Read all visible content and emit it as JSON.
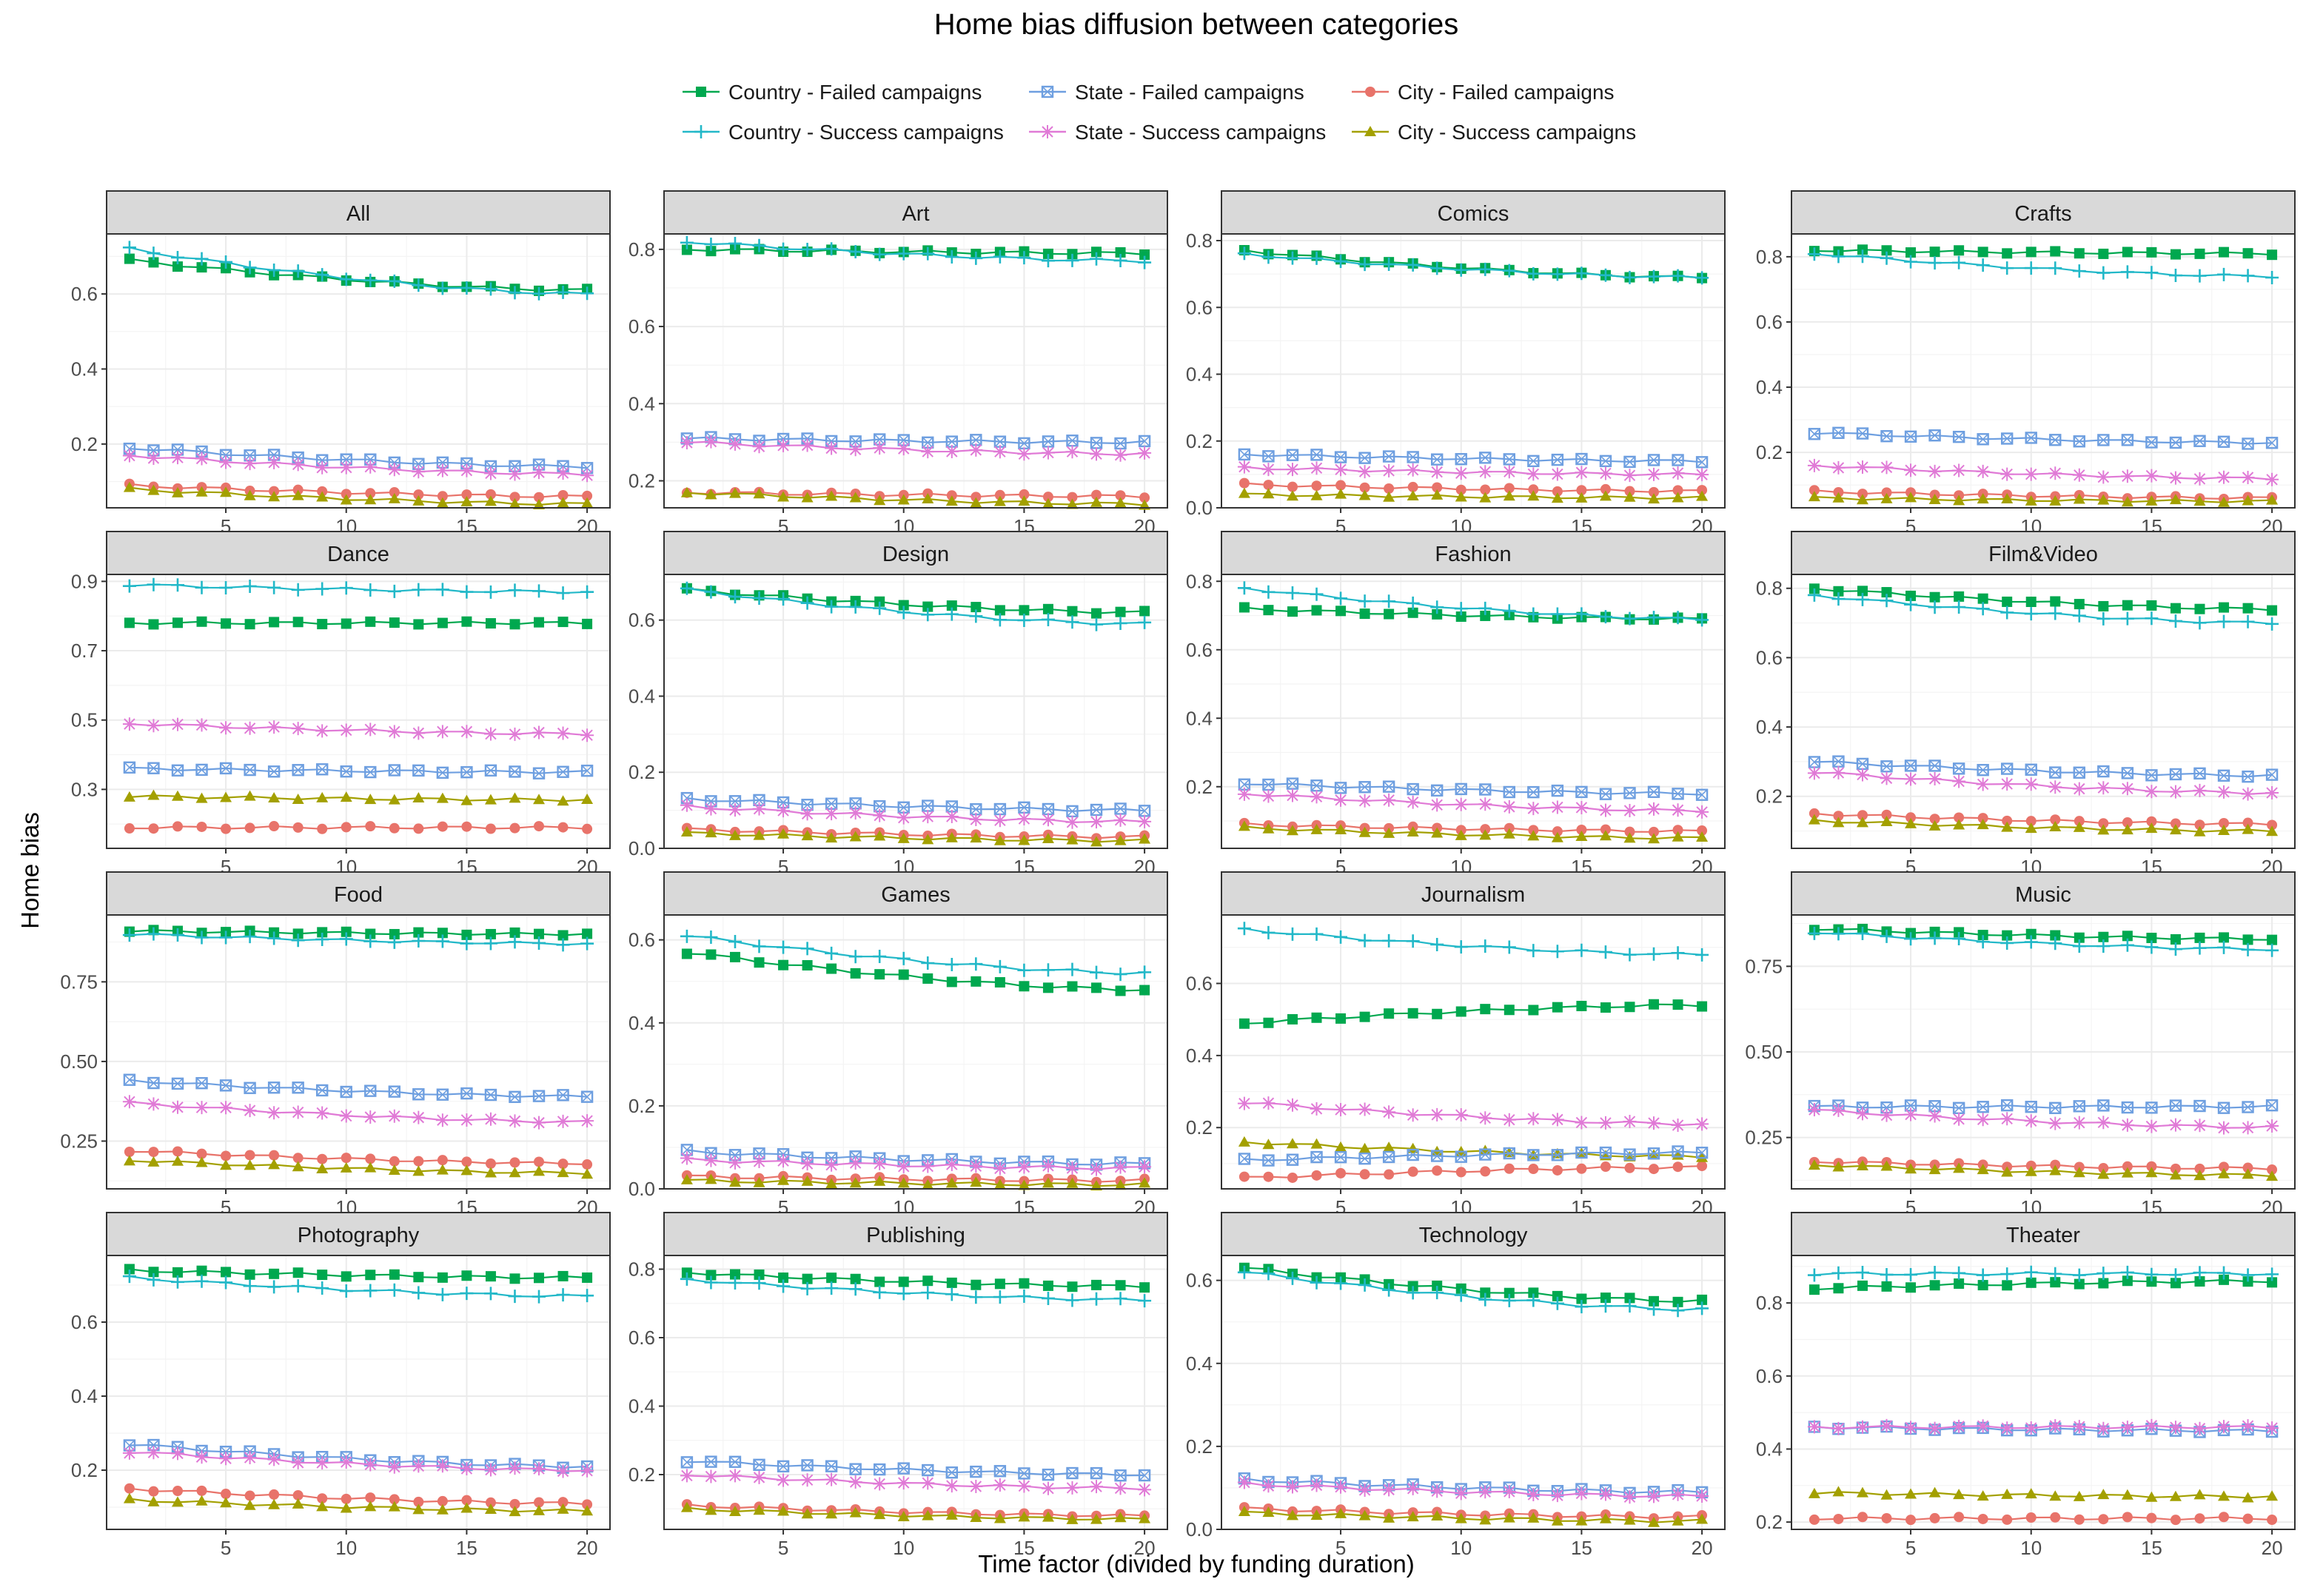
{
  "chart_data": {
    "type": "line",
    "title": "Home bias diffusion between categories",
    "xlabel": "Time factor (divided by funding duration)",
    "ylabel": "Home bias",
    "x_ticks": [
      5,
      10,
      15,
      20
    ],
    "series_meta": [
      {
        "key": "cf",
        "name": "Country - Failed campaigns",
        "color": "#00a84f",
        "marker": "square"
      },
      {
        "key": "cs",
        "name": "Country - Success campaigns",
        "color": "#22b8c8",
        "marker": "plus"
      },
      {
        "key": "sf",
        "name": "State - Failed campaigns",
        "color": "#6e9fe0",
        "marker": "boxx"
      },
      {
        "key": "ss",
        "name": "State - Success campaigns",
        "color": "#e07ad6",
        "marker": "asterisk"
      },
      {
        "key": "tf",
        "name": "City - Failed campaigns",
        "color": "#e8736a",
        "marker": "circle"
      },
      {
        "key": "ts",
        "name": "City - Success campaigns",
        "color": "#a3a000",
        "marker": "triangle"
      }
    ],
    "panels": [
      {
        "name": "All",
        "ylim": [
          0.03,
          0.76
        ],
        "yticks": [
          0.2,
          0.4,
          0.6
        ],
        "ytick_labels": [
          "0.2",
          "0.4",
          "0.6"
        ],
        "ends": {
          "cf": [
            0.69,
            0.61
          ],
          "cs": [
            0.72,
            0.6
          ],
          "sf": [
            0.19,
            0.14
          ],
          "ss": [
            0.17,
            0.12
          ],
          "tf": [
            0.09,
            0.06
          ],
          "ts": [
            0.08,
            0.04
          ]
        }
      },
      {
        "name": "Art",
        "ylim": [
          0.13,
          0.84
        ],
        "yticks": [
          0.2,
          0.4,
          0.6,
          0.8
        ],
        "ytick_labels": [
          "0.2",
          "0.4",
          "0.6",
          "0.8"
        ],
        "ends": {
          "cf": [
            0.8,
            0.79
          ],
          "cs": [
            0.82,
            0.77
          ],
          "sf": [
            0.31,
            0.3
          ],
          "ss": [
            0.3,
            0.27
          ],
          "tf": [
            0.17,
            0.16
          ],
          "ts": [
            0.17,
            0.14
          ]
        }
      },
      {
        "name": "Comics",
        "ylim": [
          0.0,
          0.82
        ],
        "yticks": [
          0.0,
          0.2,
          0.4,
          0.6,
          0.8
        ],
        "ytick_labels": [
          "0.0",
          "0.2",
          "0.4",
          "0.6",
          "0.8"
        ],
        "ends": {
          "cf": [
            0.77,
            0.69
          ],
          "cs": [
            0.76,
            0.69
          ],
          "sf": [
            0.16,
            0.14
          ],
          "ss": [
            0.12,
            0.1
          ],
          "tf": [
            0.07,
            0.05
          ],
          "ts": [
            0.04,
            0.03
          ]
        }
      },
      {
        "name": "Crafts",
        "ylim": [
          0.03,
          0.87
        ],
        "yticks": [
          0.2,
          0.4,
          0.6,
          0.8
        ],
        "ytick_labels": [
          "0.2",
          "0.4",
          "0.6",
          "0.8"
        ],
        "ends": {
          "cf": [
            0.82,
            0.81
          ],
          "cs": [
            0.81,
            0.74
          ],
          "sf": [
            0.26,
            0.23
          ],
          "ss": [
            0.16,
            0.12
          ],
          "tf": [
            0.08,
            0.06
          ],
          "ts": [
            0.06,
            0.05
          ]
        }
      },
      {
        "name": "Dance",
        "ylim": [
          0.13,
          0.92
        ],
        "yticks": [
          0.3,
          0.5,
          0.7,
          0.9
        ],
        "ytick_labels": [
          "0.3",
          "0.5",
          "0.7",
          "0.9"
        ],
        "ends": {
          "cf": [
            0.78,
            0.78
          ],
          "cs": [
            0.89,
            0.87
          ],
          "sf": [
            0.36,
            0.35
          ],
          "ss": [
            0.49,
            0.46
          ],
          "tf": [
            0.19,
            0.19
          ],
          "ts": [
            0.28,
            0.27
          ]
        }
      },
      {
        "name": "Design",
        "ylim": [
          0.0,
          0.72
        ],
        "yticks": [
          0.0,
          0.2,
          0.4,
          0.6
        ],
        "ytick_labels": [
          "0.0",
          "0.2",
          "0.4",
          "0.6"
        ],
        "ends": {
          "cf": [
            0.68,
            0.62
          ],
          "cs": [
            0.68,
            0.59
          ],
          "sf": [
            0.13,
            0.1
          ],
          "ss": [
            0.11,
            0.07
          ],
          "tf": [
            0.05,
            0.03
          ],
          "ts": [
            0.04,
            0.02
          ]
        }
      },
      {
        "name": "Fashion",
        "ylim": [
          0.02,
          0.82
        ],
        "yticks": [
          0.2,
          0.4,
          0.6,
          0.8
        ],
        "ytick_labels": [
          "0.2",
          "0.4",
          "0.6",
          "0.8"
        ],
        "ends": {
          "cf": [
            0.72,
            0.69
          ],
          "cs": [
            0.78,
            0.69
          ],
          "sf": [
            0.21,
            0.18
          ],
          "ss": [
            0.18,
            0.13
          ],
          "tf": [
            0.09,
            0.07
          ],
          "ts": [
            0.08,
            0.05
          ]
        }
      },
      {
        "name": "Film&Video",
        "ylim": [
          0.05,
          0.84
        ],
        "yticks": [
          0.2,
          0.4,
          0.6,
          0.8
        ],
        "ytick_labels": [
          "0.2",
          "0.4",
          "0.6",
          "0.8"
        ],
        "ends": {
          "cf": [
            0.8,
            0.74
          ],
          "cs": [
            0.78,
            0.7
          ],
          "sf": [
            0.3,
            0.26
          ],
          "ss": [
            0.27,
            0.21
          ],
          "tf": [
            0.15,
            0.12
          ],
          "ts": [
            0.13,
            0.1
          ]
        }
      },
      {
        "name": "Food",
        "ylim": [
          0.1,
          0.96
        ],
        "yticks": [
          0.25,
          0.5,
          0.75
        ],
        "ytick_labels": [
          "0.25",
          "0.50",
          "0.75"
        ],
        "ends": {
          "cf": [
            0.91,
            0.9
          ],
          "cs": [
            0.9,
            0.87
          ],
          "sf": [
            0.44,
            0.39
          ],
          "ss": [
            0.37,
            0.31
          ],
          "tf": [
            0.22,
            0.18
          ],
          "ts": [
            0.19,
            0.15
          ]
        }
      },
      {
        "name": "Games",
        "ylim": [
          0.0,
          0.66
        ],
        "yticks": [
          0.0,
          0.2,
          0.4,
          0.6
        ],
        "ytick_labels": [
          "0.0",
          "0.2",
          "0.4",
          "0.6"
        ],
        "ends": {
          "cf": [
            0.57,
            0.48
          ],
          "cs": [
            0.61,
            0.52
          ],
          "sf": [
            0.09,
            0.06
          ],
          "ss": [
            0.07,
            0.05
          ],
          "tf": [
            0.03,
            0.02
          ],
          "ts": [
            0.02,
            0.01
          ]
        }
      },
      {
        "name": "Journalism",
        "ylim": [
          0.03,
          0.79
        ],
        "yticks": [
          0.2,
          0.4,
          0.6
        ],
        "ytick_labels": [
          "0.2",
          "0.4",
          "0.6"
        ],
        "ends": {
          "cf": [
            0.49,
            0.54
          ],
          "cs": [
            0.75,
            0.68
          ],
          "sf": [
            0.11,
            0.13
          ],
          "ss": [
            0.27,
            0.21
          ],
          "tf": [
            0.06,
            0.09
          ],
          "ts": [
            0.16,
            0.12
          ]
        }
      },
      {
        "name": "Music",
        "ylim": [
          0.1,
          0.9
        ],
        "yticks": [
          0.25,
          0.5,
          0.75
        ],
        "ytick_labels": [
          "0.25",
          "0.50",
          "0.75"
        ],
        "ends": {
          "cf": [
            0.86,
            0.83
          ],
          "cs": [
            0.85,
            0.8
          ],
          "sf": [
            0.34,
            0.34
          ],
          "ss": [
            0.33,
            0.28
          ],
          "tf": [
            0.18,
            0.16
          ],
          "ts": [
            0.17,
            0.14
          ]
        }
      },
      {
        "name": "Photography",
        "ylim": [
          0.04,
          0.78
        ],
        "yticks": [
          0.2,
          0.4,
          0.6
        ],
        "ytick_labels": [
          "0.2",
          "0.4",
          "0.6"
        ],
        "ends": {
          "cf": [
            0.74,
            0.72
          ],
          "cs": [
            0.72,
            0.67
          ],
          "sf": [
            0.27,
            0.21
          ],
          "ss": [
            0.25,
            0.2
          ],
          "tf": [
            0.15,
            0.11
          ],
          "ts": [
            0.12,
            0.09
          ]
        }
      },
      {
        "name": "Publishing",
        "ylim": [
          0.04,
          0.84
        ],
        "yticks": [
          0.2,
          0.4,
          0.6,
          0.8
        ],
        "ytick_labels": [
          "0.2",
          "0.4",
          "0.6",
          "0.8"
        ],
        "ends": {
          "cf": [
            0.79,
            0.75
          ],
          "cs": [
            0.77,
            0.71
          ],
          "sf": [
            0.24,
            0.2
          ],
          "ss": [
            0.2,
            0.16
          ],
          "tf": [
            0.11,
            0.08
          ],
          "ts": [
            0.1,
            0.07
          ]
        }
      },
      {
        "name": "Technology",
        "ylim": [
          0.0,
          0.66
        ],
        "yticks": [
          0.0,
          0.2,
          0.4,
          0.6
        ],
        "ytick_labels": [
          "0.0",
          "0.2",
          "0.4",
          "0.6"
        ],
        "ends": {
          "cf": [
            0.63,
            0.55
          ],
          "cs": [
            0.62,
            0.53
          ],
          "sf": [
            0.12,
            0.09
          ],
          "ss": [
            0.11,
            0.08
          ],
          "tf": [
            0.05,
            0.03
          ],
          "ts": [
            0.04,
            0.02
          ]
        }
      },
      {
        "name": "Theater",
        "ylim": [
          0.18,
          0.93
        ],
        "yticks": [
          0.2,
          0.4,
          0.6,
          0.8
        ],
        "ytick_labels": [
          "0.2",
          "0.4",
          "0.6",
          "0.8"
        ],
        "ends": {
          "cf": [
            0.84,
            0.86
          ],
          "cs": [
            0.88,
            0.88
          ],
          "sf": [
            0.46,
            0.45
          ],
          "ss": [
            0.46,
            0.46
          ],
          "tf": [
            0.21,
            0.21
          ],
          "ts": [
            0.28,
            0.27
          ]
        }
      }
    ]
  }
}
